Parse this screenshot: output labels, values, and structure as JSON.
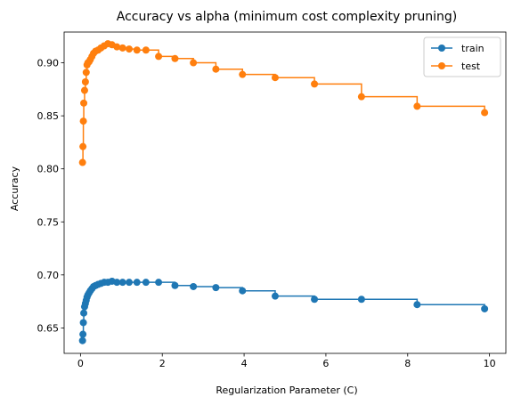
{
  "chart_data": {
    "type": "line",
    "title": "Accuracy vs alpha (minimum cost complexity pruning)",
    "xlabel": "Regularization Parameter (C)",
    "ylabel": "Accuracy",
    "xlim": [
      -0.4,
      10.4
    ],
    "ylim": [
      0.626,
      0.929
    ],
    "xticks": [
      0,
      2,
      4,
      6,
      8,
      10
    ],
    "yticks": [
      0.65,
      0.7,
      0.75,
      0.8,
      0.85,
      0.9
    ],
    "ytick_labels": [
      "0.65",
      "0.70",
      "0.75",
      "0.80",
      "0.85",
      "0.90"
    ],
    "grid": false,
    "legend_position": "top-right",
    "drawstyle": "steps-post",
    "marker": "circle",
    "series": [
      {
        "name": "train",
        "color": "#1f77b4",
        "x": [
          0.05,
          0.06,
          0.07,
          0.08,
          0.1,
          0.12,
          0.14,
          0.16,
          0.18,
          0.21,
          0.24,
          0.28,
          0.32,
          0.37,
          0.43,
          0.5,
          0.58,
          0.67,
          0.77,
          0.89,
          1.03,
          1.19,
          1.38,
          1.6,
          1.91,
          2.31,
          2.76,
          3.31,
          3.96,
          4.76,
          5.72,
          6.87,
          8.23,
          9.88
        ],
        "y": [
          0.638,
          0.644,
          0.655,
          0.664,
          0.67,
          0.673,
          0.676,
          0.679,
          0.681,
          0.683,
          0.685,
          0.687,
          0.689,
          0.69,
          0.691,
          0.692,
          0.693,
          0.693,
          0.694,
          0.693,
          0.693,
          0.693,
          0.693,
          0.693,
          0.693,
          0.69,
          0.689,
          0.688,
          0.685,
          0.68,
          0.677,
          0.677,
          0.672,
          0.668
        ]
      },
      {
        "name": "test",
        "color": "#ff7f0e",
        "x": [
          0.05,
          0.06,
          0.07,
          0.08,
          0.1,
          0.12,
          0.14,
          0.16,
          0.18,
          0.21,
          0.24,
          0.28,
          0.32,
          0.37,
          0.43,
          0.5,
          0.58,
          0.67,
          0.77,
          0.89,
          1.03,
          1.19,
          1.38,
          1.6,
          1.91,
          2.31,
          2.76,
          3.31,
          3.96,
          4.76,
          5.72,
          6.87,
          8.23,
          9.88
        ],
        "y": [
          0.806,
          0.821,
          0.845,
          0.862,
          0.874,
          0.882,
          0.891,
          0.898,
          0.9,
          0.901,
          0.903,
          0.906,
          0.909,
          0.911,
          0.912,
          0.914,
          0.916,
          0.918,
          0.917,
          0.915,
          0.914,
          0.913,
          0.912,
          0.912,
          0.906,
          0.904,
          0.9,
          0.894,
          0.889,
          0.886,
          0.88,
          0.868,
          0.859,
          0.853
        ]
      }
    ]
  }
}
